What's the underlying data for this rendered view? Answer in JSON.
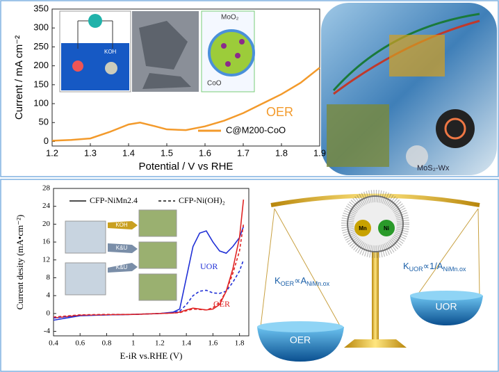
{
  "chart_data": [
    {
      "type": "line",
      "xlabel": "Potential / V vs RHE",
      "ylabel": "Current / mA cm⁻²",
      "annotation": "OER",
      "x": [
        1.2,
        1.25,
        1.3,
        1.35,
        1.4,
        1.43,
        1.47,
        1.5,
        1.55,
        1.6,
        1.65,
        1.7,
        1.75,
        1.8,
        1.85,
        1.9
      ],
      "series": [
        {
          "name": "C@M200-CoO",
          "color": "#f39a2b",
          "values": [
            2,
            4,
            8,
            25,
            45,
            50,
            40,
            32,
            30,
            40,
            55,
            75,
            100,
            125,
            155,
            195
          ]
        }
      ],
      "xlim": [
        1.2,
        1.9
      ],
      "ylim": [
        -12,
        350
      ],
      "xticks": [
        1.2,
        1.3,
        1.4,
        1.5,
        1.6,
        1.7,
        1.8,
        1.9
      ],
      "yticks": [
        0,
        50,
        100,
        150,
        200,
        250,
        300,
        350
      ]
    },
    {
      "type": "line",
      "xlabel": "E-iR vs.RHE (V)",
      "ylabel": "Current desity (mA•cm⁻²)",
      "reactions": [
        {
          "name": "UOR",
          "color": "#1f2fd6"
        },
        {
          "name": "OER",
          "color": "#e02424"
        }
      ],
      "x": [
        0.4,
        0.6,
        0.8,
        1.0,
        1.2,
        1.3,
        1.35,
        1.4,
        1.45,
        1.5,
        1.55,
        1.6,
        1.65,
        1.7,
        1.75,
        1.8,
        1.83
      ],
      "series": [
        {
          "name": "CFP-NiMn2.4",
          "dash": false,
          "values": [
            [
              -1.5,
              -0.5,
              -0.3,
              -0.2,
              0,
              0.3,
              1,
              8,
              15,
              18,
              18.5,
              16,
              14,
              13.5,
              15,
              17,
              19.5
            ],
            [
              -1,
              -0.4,
              -0.3,
              -0.2,
              0,
              0.1,
              0.3,
              0.8,
              1.2,
              1,
              0.8,
              1,
              2,
              5,
              10,
              17,
              25.5
            ]
          ]
        },
        {
          "name": "CFP-Ni(OH)₂",
          "dash": true,
          "values": [
            [
              -1,
              -0.4,
              -0.3,
              -0.2,
              0,
              0.2,
              0.5,
              2,
              4,
              5,
              5.2,
              4.6,
              4.5,
              5,
              7,
              9.5,
              12
            ],
            [
              -0.8,
              -0.3,
              -0.2,
              -0.2,
              0,
              0.1,
              0.2,
              0.6,
              1,
              0.9,
              0.8,
              1.3,
              2.5,
              5,
              9,
              14,
              20
            ]
          ]
        }
      ],
      "xlim": [
        0.4,
        1.87
      ],
      "ylim": [
        -5,
        28
      ],
      "xticks": [
        0.4,
        0.6,
        0.8,
        1.0,
        1.2,
        1.4,
        1.6,
        1.8
      ],
      "yticks": [
        -4,
        0,
        4,
        8,
        12,
        16,
        20,
        24,
        28
      ]
    }
  ],
  "illustrations": {
    "electrolyte": "KOH",
    "shell": "MoO₂",
    "core": "CoO",
    "catalyst": "MoS₂-Wx",
    "arrows": [
      "KOH",
      "K&U",
      "K&U"
    ],
    "metals": [
      "Mn",
      "Ni"
    ],
    "left_pan": "OER",
    "right_pan": "UOR",
    "left_formula": [
      "K",
      "OER",
      "∝A",
      "NiMn.ox"
    ],
    "right_formula": [
      "K",
      "UOR",
      "∝1/A",
      "NiMn.ox"
    ]
  }
}
